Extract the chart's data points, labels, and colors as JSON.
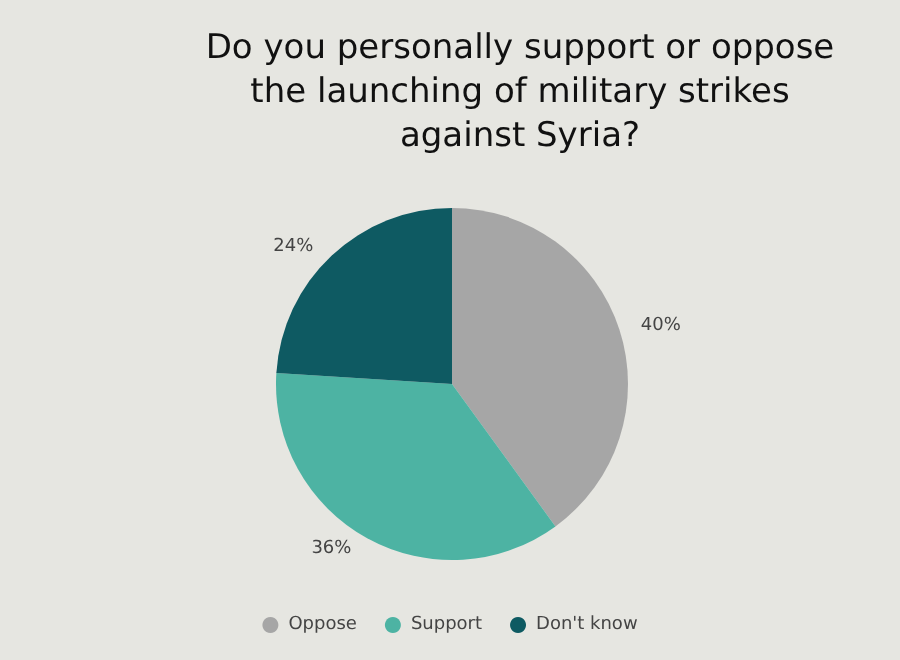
{
  "chart_data": {
    "type": "pie",
    "title": "Do you personally support or oppose\nthe launching of military strikes\nagainst Syria?",
    "categories": [
      "Oppose",
      "Support",
      "Don't know"
    ],
    "values": [
      40,
      36,
      24
    ],
    "value_labels": [
      "40%",
      "36%",
      "24%"
    ],
    "colors": [
      "#a6a6a6",
      "#4db3a3",
      "#0e5a62"
    ],
    "legend": "bottom"
  }
}
